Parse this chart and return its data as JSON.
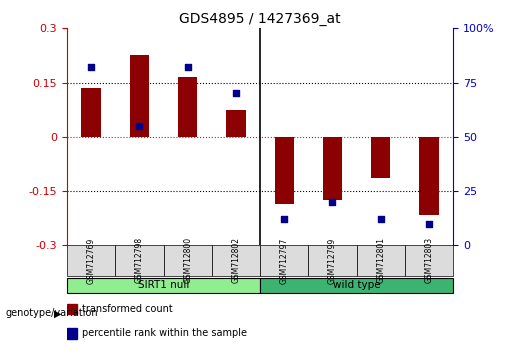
{
  "title": "GDS4895 / 1427369_at",
  "samples": [
    "GSM712769",
    "GSM712798",
    "GSM712800",
    "GSM712802",
    "GSM712797",
    "GSM712799",
    "GSM712801",
    "GSM712803"
  ],
  "transformed_counts": [
    0.135,
    0.225,
    0.165,
    0.075,
    -0.185,
    -0.175,
    -0.115,
    -0.215
  ],
  "percentile_ranks": [
    82,
    55,
    82,
    70,
    12,
    20,
    12,
    10
  ],
  "groups": [
    {
      "label": "SIRT1 null",
      "start": 0,
      "end": 4,
      "color": "#90EE90"
    },
    {
      "label": "wild type",
      "start": 4,
      "end": 8,
      "color": "#3CB371"
    }
  ],
  "bar_color": "#8B0000",
  "dot_color": "#00008B",
  "ylim": [
    -0.3,
    0.3
  ],
  "yticks_left": [
    -0.3,
    -0.15,
    0,
    0.15,
    0.3
  ],
  "yticks_right": [
    0,
    25,
    50,
    75,
    100
  ],
  "hlines": [
    0.15,
    0,
    -0.15
  ],
  "hline_colors": [
    "black",
    "red",
    "black"
  ],
  "hline_styles": [
    "dotted",
    "dotted",
    "dotted"
  ],
  "left_axis_color": "#CC0000",
  "right_axis_color": "#0000CC",
  "bar_width": 0.4,
  "legend_items": [
    {
      "color": "#8B0000",
      "label": "transformed count"
    },
    {
      "color": "#00008B",
      "label": "percentile rank within the sample"
    }
  ],
  "genotype_label": "genotype/variation",
  "background_color": "#ffffff"
}
